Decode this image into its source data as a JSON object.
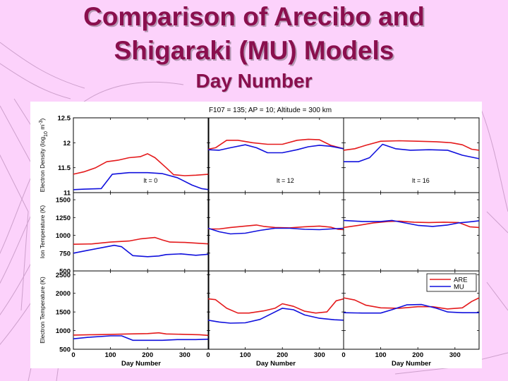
{
  "slide": {
    "title_line1": "Comparison of Arecibo and",
    "title_line2": "Shigaraki (MU) Models",
    "subtitle": "Day Number"
  },
  "colors": {
    "background": "#fcd2fb",
    "title": "#8a0f4e",
    "are": "#e41a1c",
    "mu": "#1010dd"
  },
  "chart_data": {
    "type": "line",
    "title": "F107 = 135;  AP = 10; Altitude = 300 km",
    "xlabel": "Day Number",
    "xlim": [
      0,
      365
    ],
    "xticks": [
      0,
      100,
      200,
      300
    ],
    "columns": [
      "lt = 0",
      "lt = 12",
      "lt = 16"
    ],
    "legend": {
      "position": "top-right",
      "entries": [
        "ARE",
        "MU"
      ]
    },
    "rows": [
      {
        "ylabel_html": "Electron Density (log<tspan baseline-shift=\"sub\" font-size=\"7\">10</tspan> m<tspan baseline-shift=\"super\" font-size=\"7\">-3</tspan>)",
        "ylim": [
          11,
          12.5
        ],
        "yticks": [
          11,
          11.5,
          12,
          12.5
        ],
        "ytick_labels": [
          "11",
          "11.5",
          "12",
          "12.5"
        ],
        "panels": [
          {
            "ARE": [
              [
                0,
                11.37
              ],
              [
                30,
                11.42
              ],
              [
                60,
                11.5
              ],
              [
                90,
                11.62
              ],
              [
                120,
                11.65
              ],
              [
                150,
                11.7
              ],
              [
                180,
                11.72
              ],
              [
                200,
                11.78
              ],
              [
                220,
                11.7
              ],
              [
                250,
                11.5
              ],
              [
                270,
                11.36
              ],
              [
                300,
                11.34
              ],
              [
                330,
                11.35
              ],
              [
                365,
                11.37
              ]
            ],
            "MU": [
              [
                0,
                11.06
              ],
              [
                30,
                11.07
              ],
              [
                75,
                11.08
              ],
              [
                105,
                11.37
              ],
              [
                150,
                11.4
              ],
              [
                200,
                11.4
              ],
              [
                240,
                11.38
              ],
              [
                280,
                11.3
              ],
              [
                320,
                11.15
              ],
              [
                345,
                11.08
              ],
              [
                365,
                11.06
              ]
            ]
          },
          {
            "ARE": [
              [
                0,
                11.87
              ],
              [
                20,
                11.9
              ],
              [
                50,
                12.05
              ],
              [
                80,
                12.05
              ],
              [
                120,
                12.0
              ],
              [
                160,
                11.97
              ],
              [
                200,
                11.97
              ],
              [
                240,
                12.05
              ],
              [
                270,
                12.07
              ],
              [
                300,
                12.06
              ],
              [
                330,
                11.95
              ],
              [
                365,
                11.88
              ]
            ],
            "MU": [
              [
                0,
                11.86
              ],
              [
                30,
                11.85
              ],
              [
                60,
                11.9
              ],
              [
                100,
                11.96
              ],
              [
                130,
                11.9
              ],
              [
                160,
                11.8
              ],
              [
                200,
                11.8
              ],
              [
                240,
                11.86
              ],
              [
                270,
                11.92
              ],
              [
                300,
                11.95
              ],
              [
                330,
                11.93
              ],
              [
                365,
                11.88
              ]
            ]
          },
          {
            "ARE": [
              [
                0,
                11.85
              ],
              [
                30,
                11.88
              ],
              [
                60,
                11.95
              ],
              [
                100,
                12.03
              ],
              [
                150,
                12.04
              ],
              [
                200,
                12.03
              ],
              [
                250,
                12.02
              ],
              [
                290,
                12.0
              ],
              [
                320,
                11.96
              ],
              [
                345,
                11.87
              ],
              [
                365,
                11.85
              ]
            ],
            "MU": [
              [
                0,
                11.62
              ],
              [
                40,
                11.62
              ],
              [
                70,
                11.7
              ],
              [
                105,
                11.97
              ],
              [
                140,
                11.88
              ],
              [
                180,
                11.85
              ],
              [
                230,
                11.86
              ],
              [
                280,
                11.85
              ],
              [
                320,
                11.75
              ],
              [
                365,
                11.68
              ]
            ]
          }
        ]
      },
      {
        "ylabel_html": "Ion Temperature (K)",
        "ylim": [
          500,
          1600
        ],
        "yticks": [
          500,
          750,
          1000,
          1250,
          1500
        ],
        "ytick_labels": [
          "500",
          "750",
          "1000",
          "1250",
          "1500"
        ],
        "panels": [
          {
            "ARE": [
              [
                0,
                875
              ],
              [
                50,
                880
              ],
              [
                100,
                905
              ],
              [
                150,
                920
              ],
              [
                180,
                950
              ],
              [
                220,
                970
              ],
              [
                240,
                935
              ],
              [
                260,
                905
              ],
              [
                300,
                900
              ],
              [
                330,
                890
              ],
              [
                365,
                880
              ]
            ],
            "MU": [
              [
                0,
                750
              ],
              [
                40,
                790
              ],
              [
                80,
                830
              ],
              [
                110,
                860
              ],
              [
                130,
                840
              ],
              [
                160,
                715
              ],
              [
                200,
                700
              ],
              [
                230,
                710
              ],
              [
                250,
                730
              ],
              [
                290,
                740
              ],
              [
                330,
                720
              ],
              [
                365,
                735
              ]
            ]
          },
          {
            "ARE": [
              [
                0,
                1090
              ],
              [
                30,
                1090
              ],
              [
                60,
                1110
              ],
              [
                100,
                1130
              ],
              [
                130,
                1145
              ],
              [
                150,
                1125
              ],
              [
                180,
                1110
              ],
              [
                220,
                1105
              ],
              [
                260,
                1120
              ],
              [
                300,
                1130
              ],
              [
                330,
                1115
              ],
              [
                350,
                1085
              ],
              [
                365,
                1080
              ]
            ],
            "MU": [
              [
                0,
                1100
              ],
              [
                30,
                1050
              ],
              [
                60,
                1020
              ],
              [
                100,
                1030
              ],
              [
                140,
                1070
              ],
              [
                180,
                1100
              ],
              [
                220,
                1100
              ],
              [
                260,
                1085
              ],
              [
                300,
                1080
              ],
              [
                330,
                1090
              ],
              [
                365,
                1100
              ]
            ]
          },
          {
            "ARE": [
              [
                0,
                1110
              ],
              [
                40,
                1140
              ],
              [
                80,
                1175
              ],
              [
                120,
                1195
              ],
              [
                150,
                1200
              ],
              [
                190,
                1185
              ],
              [
                230,
                1180
              ],
              [
                270,
                1185
              ],
              [
                310,
                1180
              ],
              [
                340,
                1120
              ],
              [
                365,
                1110
              ]
            ],
            "MU": [
              [
                0,
                1210
              ],
              [
                50,
                1195
              ],
              [
                100,
                1195
              ],
              [
                130,
                1210
              ],
              [
                160,
                1180
              ],
              [
                200,
                1140
              ],
              [
                240,
                1125
              ],
              [
                280,
                1145
              ],
              [
                310,
                1175
              ],
              [
                340,
                1190
              ],
              [
                365,
                1205
              ]
            ]
          }
        ]
      },
      {
        "ylabel_html": "Electron Temperature (K)",
        "ylim": [
          500,
          2600
        ],
        "yticks": [
          500,
          1000,
          1500,
          2000,
          2500
        ],
        "ytick_labels": [
          "500",
          "1000",
          "1500",
          "2000",
          "2500"
        ],
        "panels": [
          {
            "ARE": [
              [
                0,
                880
              ],
              [
                50,
                890
              ],
              [
                100,
                900
              ],
              [
                150,
                910
              ],
              [
                200,
                920
              ],
              [
                230,
                940
              ],
              [
                250,
                910
              ],
              [
                300,
                900
              ],
              [
                340,
                890
              ],
              [
                365,
                870
              ]
            ],
            "MU": [
              [
                0,
                780
              ],
              [
                40,
                820
              ],
              [
                100,
                860
              ],
              [
                130,
                860
              ],
              [
                160,
                740
              ],
              [
                200,
                740
              ],
              [
                240,
                740
              ],
              [
                280,
                760
              ],
              [
                330,
                760
              ],
              [
                365,
                770
              ]
            ]
          },
          {
            "ARE": [
              [
                0,
                1850
              ],
              [
                20,
                1830
              ],
              [
                50,
                1600
              ],
              [
                80,
                1470
              ],
              [
                110,
                1470
              ],
              [
                150,
                1530
              ],
              [
                180,
                1600
              ],
              [
                200,
                1720
              ],
              [
                230,
                1650
              ],
              [
                260,
                1520
              ],
              [
                290,
                1470
              ],
              [
                320,
                1500
              ],
              [
                345,
                1800
              ],
              [
                365,
                1850
              ]
            ],
            "MU": [
              [
                0,
                1280
              ],
              [
                30,
                1230
              ],
              [
                60,
                1200
              ],
              [
                100,
                1210
              ],
              [
                140,
                1300
              ],
              [
                170,
                1450
              ],
              [
                200,
                1600
              ],
              [
                230,
                1560
              ],
              [
                260,
                1420
              ],
              [
                300,
                1330
              ],
              [
                340,
                1290
              ],
              [
                365,
                1280
              ]
            ]
          },
          {
            "ARE": [
              [
                0,
                1880
              ],
              [
                30,
                1820
              ],
              [
                60,
                1680
              ],
              [
                100,
                1610
              ],
              [
                150,
                1600
              ],
              [
                200,
                1640
              ],
              [
                240,
                1640
              ],
              [
                280,
                1580
              ],
              [
                320,
                1610
              ],
              [
                345,
                1780
              ],
              [
                365,
                1880
              ]
            ],
            "MU": [
              [
                0,
                1480
              ],
              [
                50,
                1470
              ],
              [
                100,
                1470
              ],
              [
                130,
                1560
              ],
              [
                170,
                1690
              ],
              [
                210,
                1700
              ],
              [
                250,
                1600
              ],
              [
                280,
                1500
              ],
              [
                320,
                1480
              ],
              [
                365,
                1480
              ]
            ]
          }
        ]
      }
    ]
  }
}
